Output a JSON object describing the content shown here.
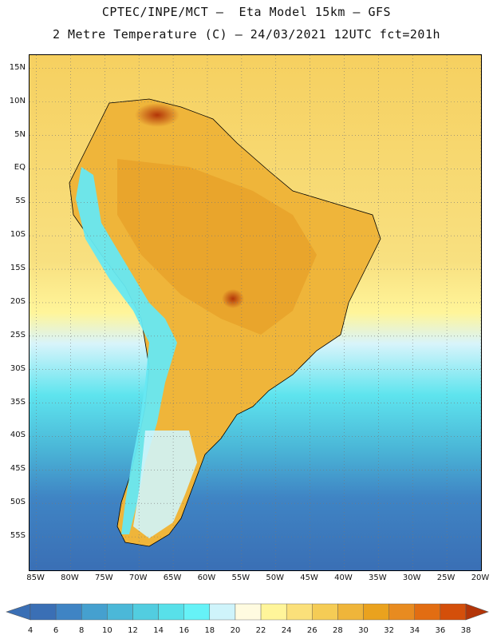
{
  "header": {
    "line1": "CPTEC/INPE/MCT –  Eta Model 15km – GFS",
    "line2": "2 Metre Temperature (C) – 24/03/2021 12UTC fct=201h"
  },
  "map": {
    "lat_ticks": [
      "15N",
      "10N",
      "5N",
      "EQ",
      "5S",
      "10S",
      "15S",
      "20S",
      "25S",
      "30S",
      "35S",
      "40S",
      "45S",
      "50S",
      "55S"
    ],
    "lat_values": [
      15,
      10,
      5,
      0,
      -5,
      -10,
      -15,
      -20,
      -25,
      -30,
      -35,
      -40,
      -45,
      -50,
      -55
    ],
    "lon_ticks": [
      "85W",
      "80W",
      "75W",
      "70W",
      "65W",
      "60W",
      "55W",
      "50W",
      "45W",
      "40W",
      "35W",
      "30W",
      "25W",
      "20W"
    ],
    "lon_values": [
      -85,
      -80,
      -75,
      -70,
      -65,
      -60,
      -55,
      -50,
      -45,
      -40,
      -35,
      -30,
      -25,
      -20
    ],
    "lon_range": [
      -86,
      -20
    ],
    "lat_range": [
      -60,
      17
    ],
    "gridlines": "dotted"
  },
  "colorbar": {
    "labels": [
      "4",
      "6",
      "8",
      "10",
      "12",
      "14",
      "16",
      "18",
      "20",
      "22",
      "24",
      "26",
      "28",
      "30",
      "32",
      "34",
      "36",
      "38"
    ],
    "colors": [
      "#3a6fb5",
      "#3f84c4",
      "#45a0cf",
      "#4bb8d8",
      "#52cde0",
      "#58e0e9",
      "#66f2f7",
      "#cff4fb",
      "#fffbe0",
      "#fff59a",
      "#fbe07a",
      "#f5cc55",
      "#efb53a",
      "#eaa21e",
      "#e88b20",
      "#e26d12",
      "#d44f0a",
      "#b33508"
    ]
  }
}
